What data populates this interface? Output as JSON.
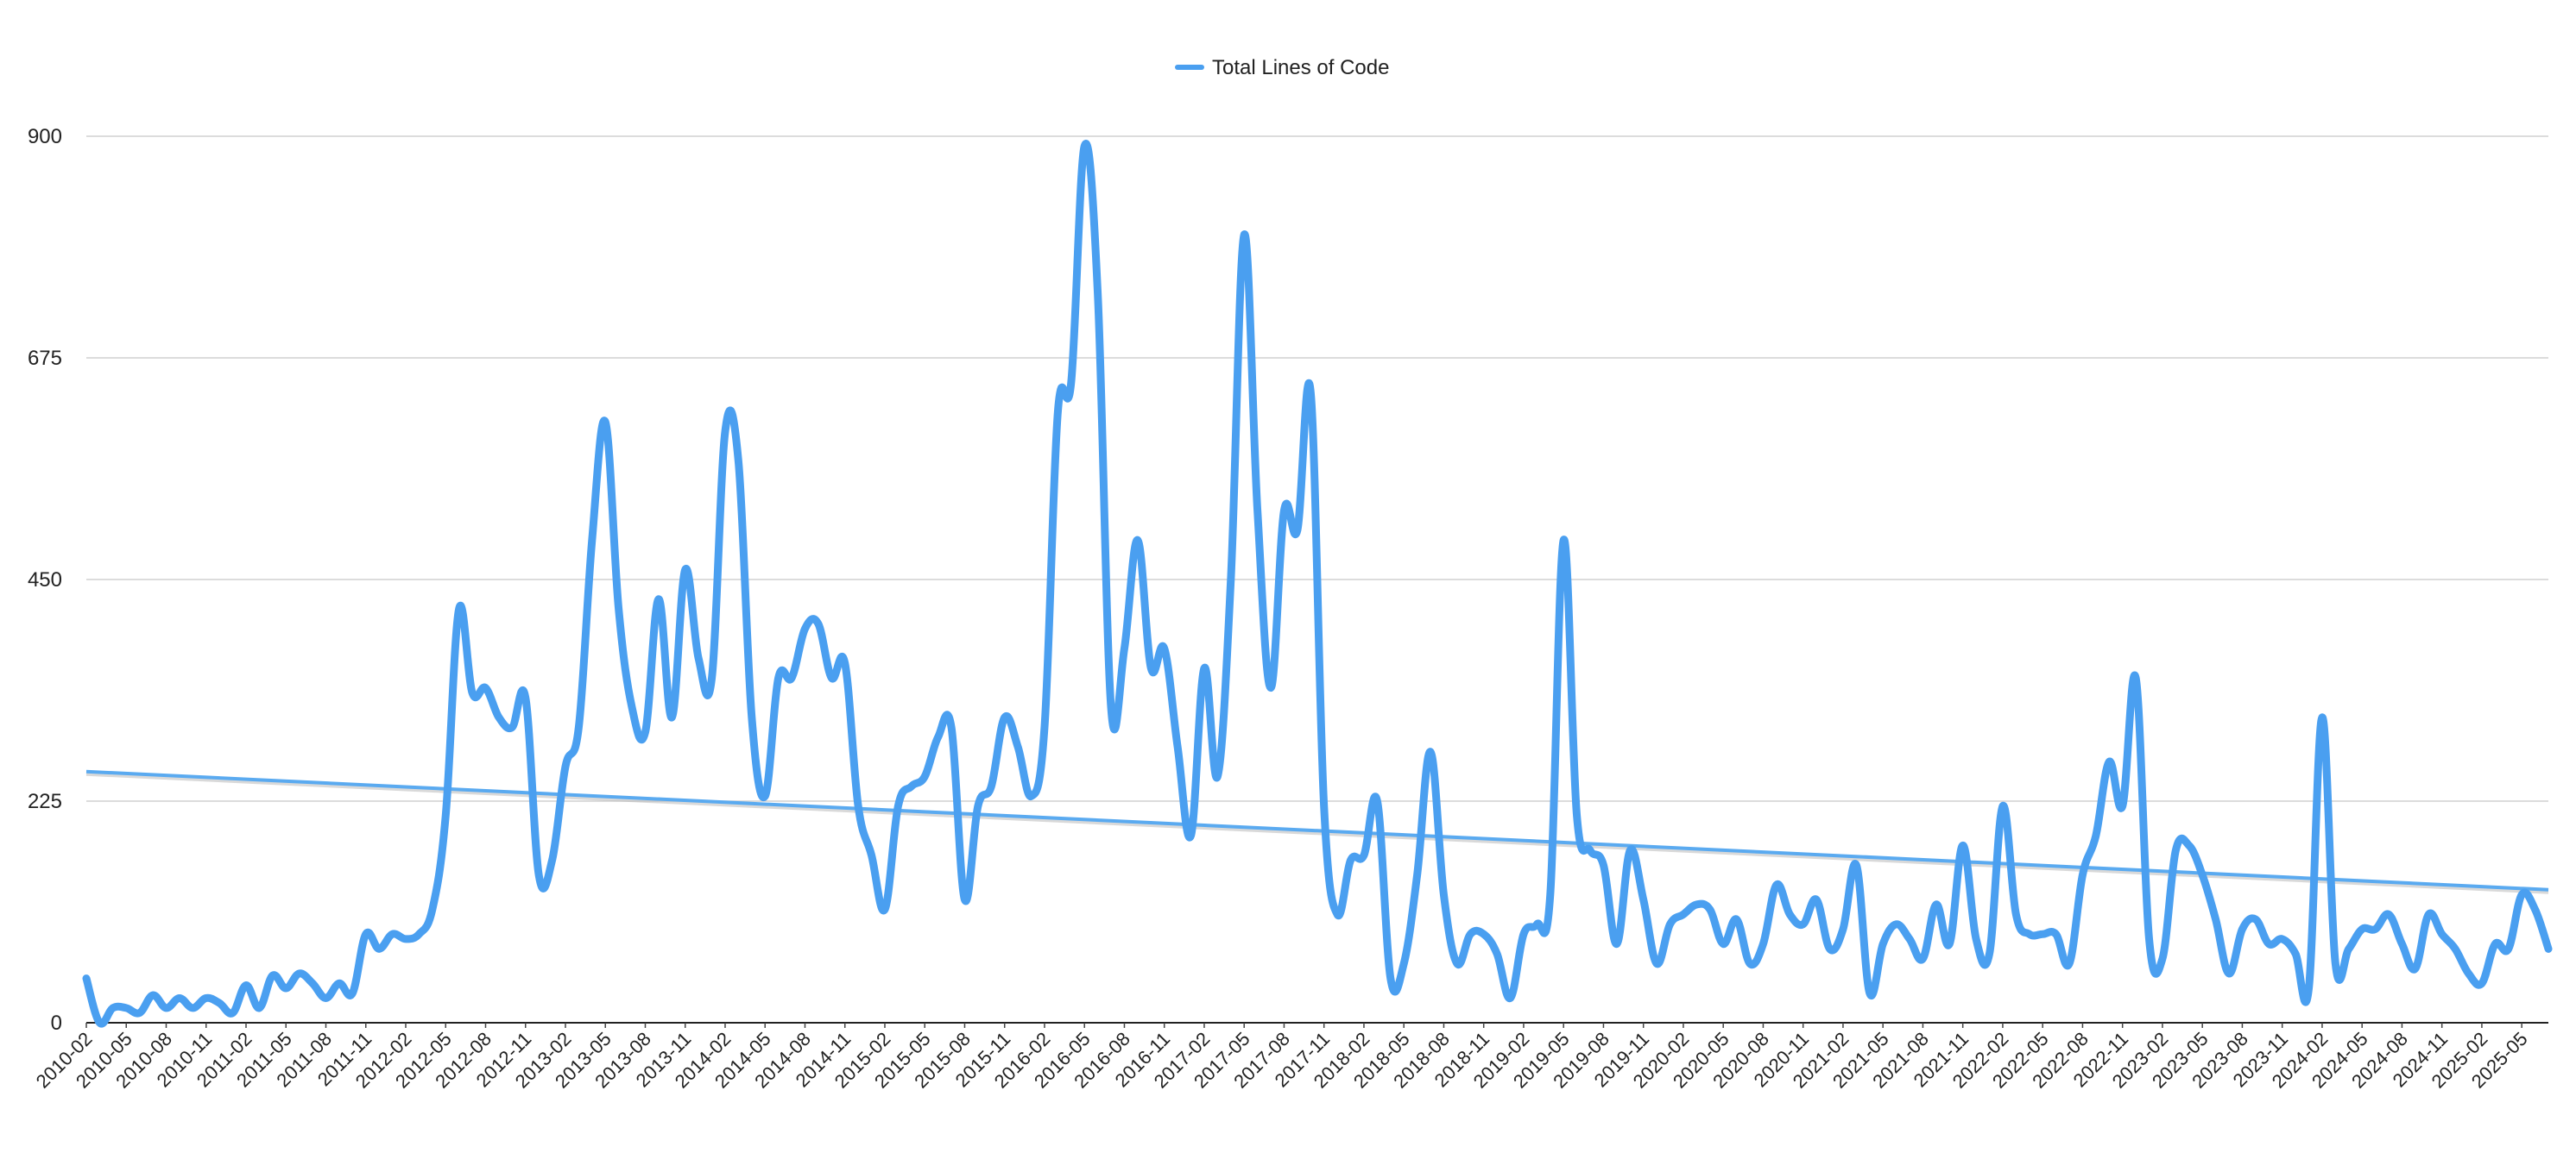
{
  "chart_data": {
    "type": "line",
    "legend": {
      "position": "top-center",
      "label": "Total Lines of Code"
    },
    "grid": true,
    "ylim": [
      0,
      900
    ],
    "y_ticks": [
      "0",
      "225",
      "450",
      "675",
      "900"
    ],
    "x_tick_labels": [
      "2010-02",
      "2010-05",
      "2010-08",
      "2010-11",
      "2011-02",
      "2011-05",
      "2011-08",
      "2011-11",
      "2012-02",
      "2012-05",
      "2012-08",
      "2012-11",
      "2013-02",
      "2013-05",
      "2013-08",
      "2013-11",
      "2014-02",
      "2014-05",
      "2014-08",
      "2014-11",
      "2015-02",
      "2015-05",
      "2015-08",
      "2015-11",
      "2016-02",
      "2016-05",
      "2016-08",
      "2016-11",
      "2017-02",
      "2017-05",
      "2017-08",
      "2017-11",
      "2018-02",
      "2018-05",
      "2018-08",
      "2018-11",
      "2019-02",
      "2019-05",
      "2019-08",
      "2019-11",
      "2020-02",
      "2020-05",
      "2020-08",
      "2020-11",
      "2021-02",
      "2021-05",
      "2021-08",
      "2021-11",
      "2022-02",
      "2022-05",
      "2022-08",
      "2022-11",
      "2023-02",
      "2023-05",
      "2023-08",
      "2023-11",
      "2024-02",
      "2024-05",
      "2024-08",
      "2024-11",
      "2025-02",
      "2025-05"
    ],
    "start_month": "2010-02",
    "series": [
      {
        "name": "Total Lines of Code",
        "color": "#4a9ff0",
        "values": [
          45,
          0,
          15,
          15,
          10,
          28,
          15,
          25,
          15,
          25,
          20,
          10,
          38,
          15,
          48,
          35,
          50,
          40,
          25,
          40,
          30,
          90,
          75,
          90,
          85,
          90,
          115,
          210,
          420,
          335,
          340,
          310,
          300,
          330,
          150,
          165,
          260,
          300,
          490,
          610,
          420,
          320,
          295,
          430,
          310,
          460,
          370,
          350,
          600,
          570,
          310,
          230,
          350,
          350,
          400,
          405,
          350,
          365,
          220,
          170,
          115,
          220,
          240,
          250,
          290,
          300,
          125,
          220,
          240,
          310,
          280,
          230,
          300,
          620,
          650,
          890,
          740,
          320,
          380,
          490,
          360,
          380,
          280,
          190,
          360,
          250,
          450,
          800,
          520,
          340,
          520,
          500,
          640,
          220,
          110,
          165,
          170,
          225,
          45,
          60,
          150,
          275,
          130,
          60,
          90,
          90,
          70,
          25,
          90,
          100,
          130,
          490,
          210,
          175,
          160,
          80,
          175,
          125,
          60,
          100,
          110,
          120,
          115,
          80,
          105,
          60,
          80,
          140,
          110,
          100,
          125,
          75,
          95,
          160,
          30,
          80,
          100,
          85,
          65,
          120,
          80,
          180,
          85,
          70,
          220,
          110,
          90,
          90,
          90,
          60,
          150,
          190,
          265,
          220,
          350,
          85,
          65,
          175,
          180,
          150,
          105,
          50,
          95,
          105,
          80,
          85,
          70,
          35,
          310,
          60,
          75,
          95,
          95,
          110,
          80,
          55,
          110,
          90,
          75,
          50,
          40,
          80,
          75,
          130,
          115,
          75
        ]
      }
    ],
    "trendline": {
      "start": 255,
      "end": 135,
      "color": "#5aaaf0"
    }
  }
}
